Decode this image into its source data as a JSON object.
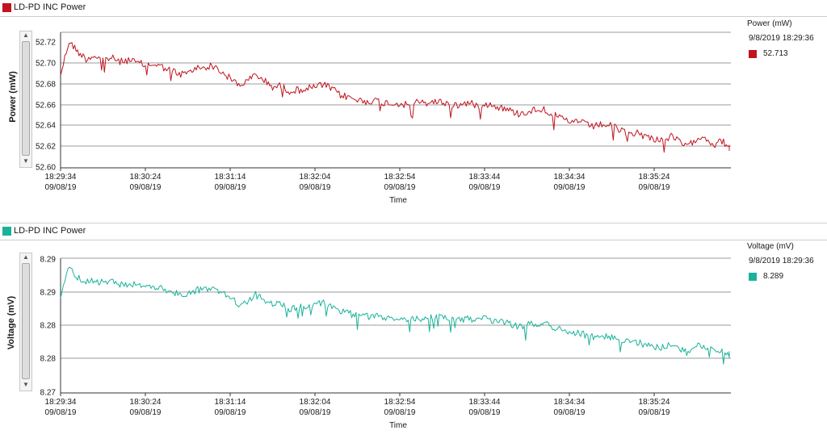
{
  "chart_data": [
    {
      "type": "line",
      "panel_title": "LD-PD INC Power",
      "ylabel": "Power (mW)",
      "xlabel": "Time",
      "ylim": [
        52.6,
        52.73
      ],
      "yticks": [
        "52.72",
        "52.70",
        "52.68",
        "52.66",
        "52.64",
        "52.62",
        "52.60"
      ],
      "xticks": [
        {
          "time": "18:29:34",
          "date": "09/08/19"
        },
        {
          "time": "18:30:24",
          "date": "09/08/19"
        },
        {
          "time": "18:31:14",
          "date": "09/08/19"
        },
        {
          "time": "18:32:04",
          "date": "09/08/19"
        },
        {
          "time": "18:32:54",
          "date": "09/08/19"
        },
        {
          "time": "18:33:44",
          "date": "09/08/19"
        },
        {
          "time": "18:34:34",
          "date": "09/08/19"
        },
        {
          "time": "18:35:24",
          "date": "09/08/19"
        }
      ],
      "grid": true,
      "color": "#c0141e",
      "series": [
        {
          "x_seconds_from_start": [
            0,
            5,
            10,
            15,
            20,
            25,
            30,
            35,
            40,
            45,
            50,
            55,
            60,
            65,
            70,
            75,
            80,
            85,
            90,
            95,
            100,
            105,
            110,
            115,
            120,
            125,
            130,
            135,
            140,
            145,
            150,
            155,
            160,
            165,
            170,
            175,
            180,
            185,
            190,
            195,
            200,
            205,
            210,
            215,
            220,
            225,
            230,
            235,
            240,
            245,
            250,
            255,
            260,
            265,
            270,
            275,
            280,
            285,
            290,
            295,
            300,
            305,
            310,
            315,
            320,
            325,
            330,
            335,
            340,
            345,
            350,
            355,
            360,
            365,
            370,
            375,
            380,
            385,
            390,
            395,
            400,
            405
          ],
          "values": [
            52.69,
            52.722,
            52.712,
            52.705,
            52.708,
            52.704,
            52.706,
            52.702,
            52.704,
            52.701,
            52.699,
            52.7,
            52.697,
            52.694,
            52.69,
            52.691,
            52.696,
            52.697,
            52.698,
            52.692,
            52.686,
            52.68,
            52.683,
            52.69,
            52.684,
            52.678,
            52.679,
            52.674,
            52.675,
            52.676,
            52.678,
            52.68,
            52.676,
            52.67,
            52.668,
            52.665,
            52.664,
            52.665,
            52.663,
            52.662,
            52.662,
            52.66,
            52.663,
            52.662,
            52.664,
            52.663,
            52.661,
            52.66,
            52.663,
            52.66,
            52.662,
            52.66,
            52.658,
            52.655,
            52.652,
            52.654,
            52.656,
            52.657,
            52.651,
            52.648,
            52.643,
            52.646,
            52.641,
            52.64,
            52.642,
            52.64,
            52.636,
            52.633,
            52.634,
            52.63,
            52.628,
            52.627,
            52.63,
            52.625,
            52.62,
            52.629,
            52.63,
            52.622,
            52.626,
            52.619,
            52.618,
            52.62
          ]
        }
      ],
      "legend": {
        "title": "Power (mW)",
        "time": "9/8/2019 18:29:36",
        "value": "52.713"
      }
    },
    {
      "type": "line",
      "panel_title": "LD-PD INC Power",
      "ylabel": "Voltage (mV)",
      "xlabel": "Time",
      "yticks": [
        "8.29",
        "8.29",
        "8.28",
        "8.28",
        "8.27"
      ],
      "grid": true,
      "color": "#1ab29a",
      "xticks": [
        {
          "time": "18:29:34",
          "date": "09/08/19"
        },
        {
          "time": "18:30:24",
          "date": "09/08/19"
        },
        {
          "time": "18:31:14",
          "date": "09/08/19"
        },
        {
          "time": "18:32:04",
          "date": "09/08/19"
        },
        {
          "time": "18:32:54",
          "date": "09/08/19"
        },
        {
          "time": "18:33:44",
          "date": "09/08/19"
        },
        {
          "time": "18:34:34",
          "date": "09/08/19"
        },
        {
          "time": "18:35:24",
          "date": "09/08/19"
        }
      ],
      "series": [
        {
          "x_seconds_from_start": [
            0,
            5,
            10,
            15,
            20,
            25,
            30,
            35,
            40,
            45,
            50,
            55,
            60,
            65,
            70,
            75,
            80,
            85,
            90,
            95,
            100,
            105,
            110,
            115,
            120,
            125,
            130,
            135,
            140,
            145,
            150,
            155,
            160,
            165,
            170,
            175,
            180,
            185,
            190,
            195,
            200,
            205,
            210,
            215,
            220,
            225,
            230,
            235,
            240,
            245,
            250,
            255,
            260,
            265,
            270,
            275,
            280,
            285,
            290,
            295,
            300,
            305,
            310,
            315,
            320,
            325,
            330,
            335,
            340,
            345,
            350,
            355,
            360,
            365,
            370,
            375,
            380,
            385,
            390,
            395,
            400,
            405
          ],
          "values": [
            8.288,
            8.2912,
            8.2902,
            8.2895,
            8.2898,
            8.2894,
            8.2896,
            8.2892,
            8.2894,
            8.2891,
            8.2889,
            8.289,
            8.2887,
            8.2884,
            8.288,
            8.2881,
            8.2886,
            8.2887,
            8.2888,
            8.2882,
            8.2876,
            8.287,
            8.2873,
            8.288,
            8.2874,
            8.2868,
            8.2869,
            8.2864,
            8.2865,
            8.2866,
            8.2868,
            8.287,
            8.2866,
            8.286,
            8.2858,
            8.2855,
            8.2854,
            8.2855,
            8.2853,
            8.2852,
            8.2852,
            8.285,
            8.2853,
            8.2852,
            8.2854,
            8.2853,
            8.2851,
            8.285,
            8.2853,
            8.285,
            8.2852,
            8.285,
            8.2848,
            8.2845,
            8.2842,
            8.2844,
            8.2846,
            8.2847,
            8.2841,
            8.2838,
            8.2833,
            8.2836,
            8.2831,
            8.283,
            8.2832,
            8.283,
            8.2826,
            8.2823,
            8.2824,
            8.282,
            8.2818,
            8.2817,
            8.282,
            8.2815,
            8.281,
            8.2819,
            8.282,
            8.2812,
            8.2816,
            8.2809,
            8.2808,
            8.281
          ]
        }
      ],
      "legend": {
        "title": "Voltage (mV)",
        "time": "9/8/2019 18:29:36",
        "value": "8.289"
      }
    }
  ]
}
